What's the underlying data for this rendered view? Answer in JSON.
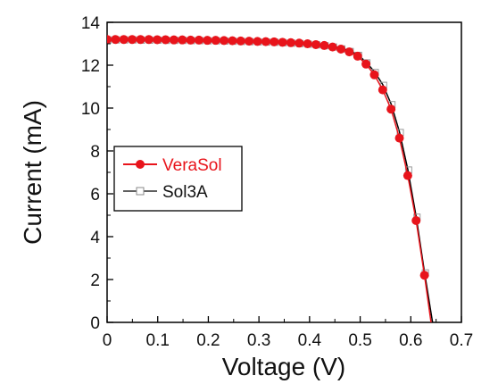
{
  "chart_data": {
    "type": "line",
    "title": "",
    "xlabel": "Voltage (V)",
    "ylabel": "Current (mA)",
    "xlim": [
      0,
      0.7
    ],
    "ylim": [
      0,
      14
    ],
    "x_ticks": [
      "0",
      "0.1",
      "0.2",
      "0.3",
      "0.4",
      "0.5",
      "0.6",
      "0.7"
    ],
    "y_ticks": [
      "0",
      "2",
      "4",
      "6",
      "8",
      "10",
      "12",
      "14"
    ],
    "grid": false,
    "legend_position": "left-middle",
    "series": [
      {
        "name": "VeraSol",
        "color": "#e8141b",
        "marker": "filled-circle",
        "x": [
          0,
          0.0165,
          0.033,
          0.0495,
          0.066,
          0.0825,
          0.099,
          0.1155,
          0.132,
          0.1485,
          0.165,
          0.1815,
          0.198,
          0.2145,
          0.231,
          0.2475,
          0.264,
          0.2805,
          0.297,
          0.3135,
          0.33,
          0.3465,
          0.363,
          0.3795,
          0.396,
          0.4125,
          0.429,
          0.4455,
          0.462,
          0.4785,
          0.495,
          0.5115,
          0.528,
          0.5445,
          0.561,
          0.5775,
          0.594,
          0.6105,
          0.627
        ],
        "y": [
          13.2,
          13.2,
          13.2,
          13.2,
          13.2,
          13.2,
          13.19,
          13.19,
          13.18,
          13.18,
          13.17,
          13.17,
          13.16,
          13.16,
          13.15,
          13.14,
          13.13,
          13.12,
          13.11,
          13.1,
          13.09,
          13.07,
          13.05,
          13.03,
          13.0,
          12.96,
          12.92,
          12.85,
          12.75,
          12.62,
          12.42,
          12.05,
          11.55,
          10.85,
          9.95,
          8.6,
          6.85,
          4.75,
          2.2
        ]
      },
      {
        "name": "Sol3A",
        "color": "#000000",
        "marker": "open-square",
        "x": [
          0,
          0.0165,
          0.033,
          0.0495,
          0.066,
          0.0825,
          0.099,
          0.1155,
          0.132,
          0.1485,
          0.165,
          0.1815,
          0.198,
          0.2145,
          0.231,
          0.2475,
          0.264,
          0.2805,
          0.297,
          0.3135,
          0.33,
          0.3465,
          0.363,
          0.3795,
          0.396,
          0.4125,
          0.429,
          0.4455,
          0.462,
          0.4785,
          0.495,
          0.5115,
          0.528,
          0.5445,
          0.561,
          0.5775,
          0.594,
          0.6105,
          0.627
        ],
        "y": [
          13.22,
          13.22,
          13.22,
          13.22,
          13.21,
          13.21,
          13.21,
          13.2,
          13.2,
          13.2,
          13.19,
          13.19,
          13.18,
          13.18,
          13.17,
          13.16,
          13.15,
          13.14,
          13.13,
          13.12,
          13.11,
          13.09,
          13.07,
          13.05,
          13.02,
          12.99,
          12.95,
          12.89,
          12.8,
          12.68,
          12.5,
          12.15,
          11.7,
          11.1,
          10.2,
          8.9,
          7.15,
          4.95,
          2.35
        ]
      }
    ]
  }
}
